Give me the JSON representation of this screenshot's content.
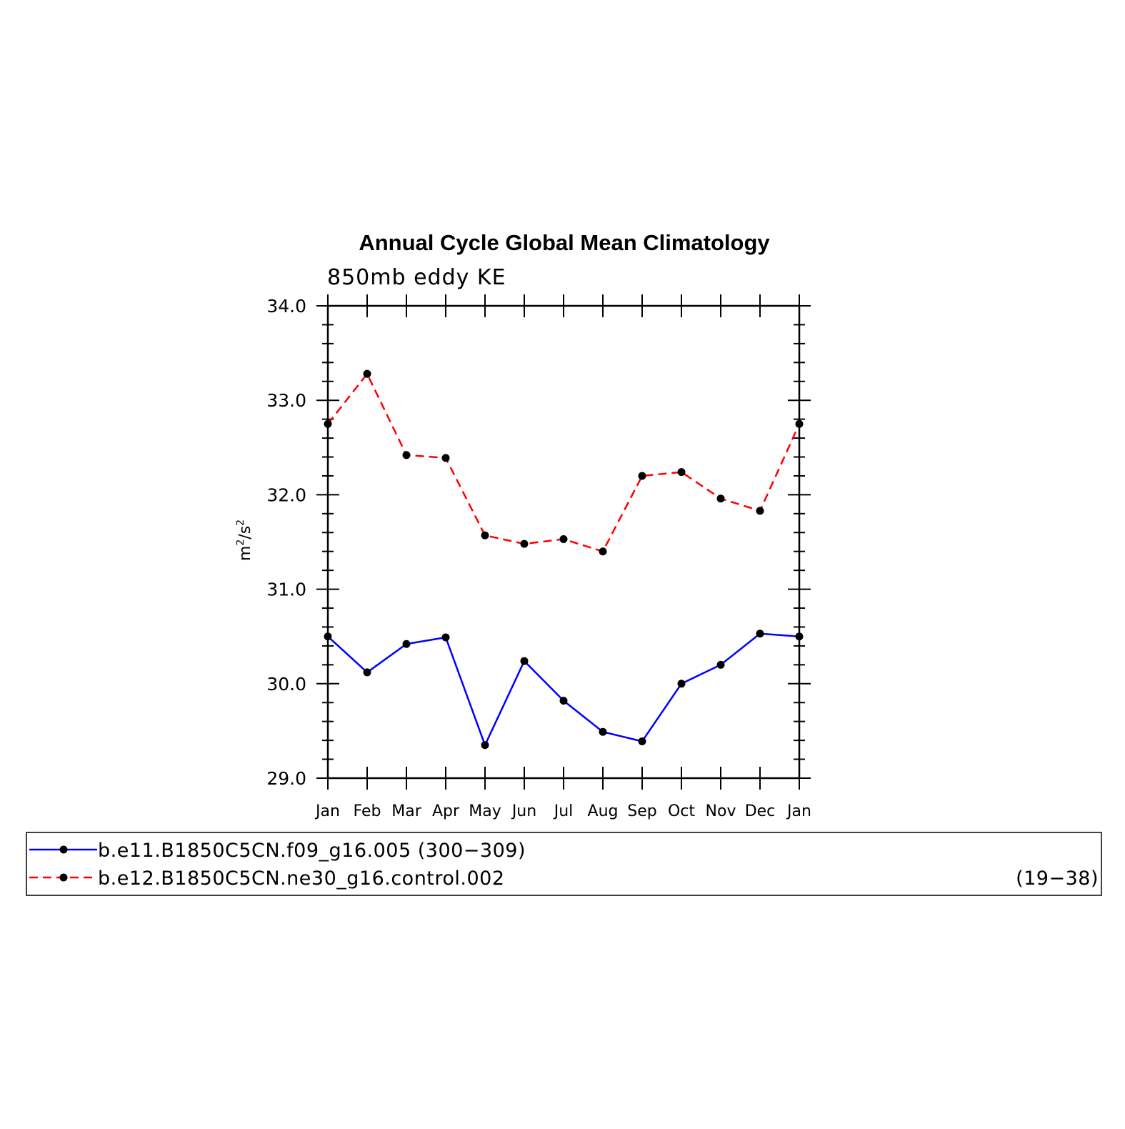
{
  "chart_data": {
    "type": "line",
    "title": "Annual Cycle Global Mean Climatology",
    "subtitle": "850mb eddy KE",
    "ylabel_base": "m",
    "ylabel_sup1": "2",
    "ylabel_mid": "/s",
    "ylabel_sup2": "2",
    "xlabel": "",
    "categories": [
      "Jan",
      "Feb",
      "Mar",
      "Apr",
      "May",
      "Jun",
      "Jul",
      "Aug",
      "Sep",
      "Oct",
      "Nov",
      "Dec",
      "Jan"
    ],
    "ylim": [
      29.0,
      34.0
    ],
    "yticks": [
      "29.0",
      "30.0",
      "31.0",
      "32.0",
      "33.0",
      "34.0"
    ],
    "grid": false,
    "legend_position": "bottom",
    "series": [
      {
        "name": "b.e11.B1850C5CN.f09_g16.005 (300−309)",
        "legend_suffix": "",
        "color": "#0000ff",
        "dash": "solid",
        "values": [
          30.5,
          30.12,
          30.42,
          30.49,
          29.35,
          30.24,
          29.82,
          29.49,
          29.39,
          30.0,
          30.2,
          30.53,
          30.5
        ]
      },
      {
        "name": "b.e12.B1850C5CN.ne30_g16.control.002",
        "legend_suffix": "(19−38)",
        "color": "#ff0000",
        "dash": "dashed",
        "values": [
          32.75,
          33.28,
          32.42,
          32.39,
          31.57,
          31.48,
          31.53,
          31.4,
          32.2,
          32.24,
          31.96,
          31.83,
          32.75
        ]
      }
    ]
  }
}
